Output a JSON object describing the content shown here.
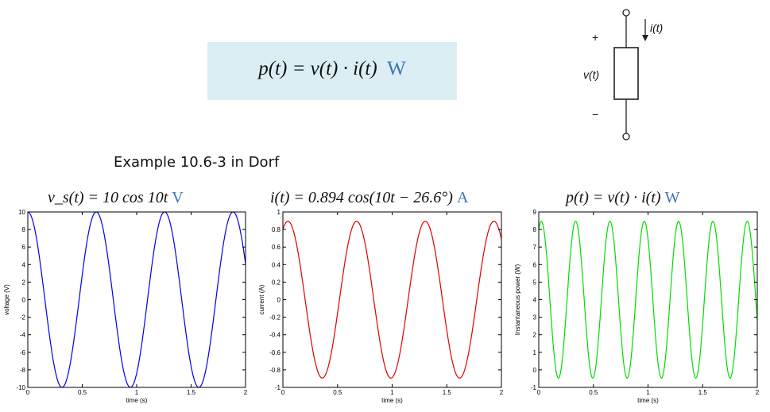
{
  "header": {
    "formula": "p(t) = v(t) · i(t)",
    "unit": "W"
  },
  "circuit": {
    "current_label": "i(t)",
    "voltage_label": "v(t)",
    "plus": "+",
    "minus": "−"
  },
  "example_label": "Example 10.6-3 in Dorf",
  "chart_data": [
    {
      "type": "line",
      "title": "v_s(t) = 10 cos 10t",
      "title_unit": "V",
      "color": "#0000ee",
      "xlabel": "time (s)",
      "ylabel": "voltage (V)",
      "xlim": [
        0,
        2
      ],
      "ylim": [
        -10,
        10
      ],
      "xticks": [
        "0",
        "0.5",
        "1",
        "1.5",
        "2"
      ],
      "yticks": [
        "-10",
        "-8",
        "-6",
        "-4",
        "-2",
        "0",
        "2",
        "4",
        "6",
        "8",
        "10"
      ],
      "function": {
        "amplitude": 10,
        "omega": 10,
        "phase_deg": 0,
        "offset": 0
      },
      "series": [
        {
          "x": [
            0,
            0.314,
            0.628,
            0.942,
            1.257,
            1.571,
            1.885,
            2.0
          ],
          "y": [
            10,
            -10,
            10,
            -10,
            10,
            -10,
            10,
            4.08
          ]
        }
      ]
    },
    {
      "type": "line",
      "title": "i(t) = 0.894 cos(10t − 26.6°)",
      "title_unit": "A",
      "color": "#e00000",
      "xlabel": "time (s)",
      "ylabel": "current (A)",
      "xlim": [
        0,
        2
      ],
      "ylim": [
        -1,
        1
      ],
      "xticks": [
        "0",
        "0.5",
        "1",
        "1.5",
        "2"
      ],
      "yticks": [
        "-1",
        "-0.8",
        "-0.6",
        "-0.4",
        "-0.2",
        "0",
        "0.2",
        "0.4",
        "0.6",
        "0.8",
        "1"
      ],
      "function": {
        "amplitude": 0.894,
        "omega": 10,
        "phase_deg": -26.6,
        "offset": 0
      },
      "series": [
        {
          "x": [
            0,
            0.046,
            0.361,
            0.675,
            0.989,
            1.303,
            1.617,
            1.932,
            2.0
          ],
          "y": [
            0.8,
            0.894,
            -0.894,
            0.894,
            -0.894,
            0.894,
            -0.894,
            0.894,
            0.73
          ]
        }
      ]
    },
    {
      "type": "line",
      "title": "p(t) = v(t) · i(t)",
      "title_unit": "W",
      "color": "#00dd00",
      "xlabel": "time (s)",
      "ylabel": "Instantaneous power (W)",
      "xlim": [
        0,
        2
      ],
      "ylim": [
        -1,
        9
      ],
      "xticks": [
        "0",
        "0.5",
        "1",
        "1.5",
        "2"
      ],
      "yticks": [
        "-1",
        "0",
        "1",
        "2",
        "3",
        "4",
        "5",
        "6",
        "7",
        "8",
        "9"
      ],
      "function": {
        "product": true,
        "offset": 4.0,
        "amplitude": 4.47,
        "omega": 20,
        "phase_deg": -26.6
      },
      "series": [
        {
          "x": [
            0,
            0.023,
            0.18,
            0.338,
            0.495,
            0.652,
            0.809,
            0.966,
            1.123,
            1.28,
            1.437,
            1.594,
            1.751,
            1.908,
            2.0
          ],
          "y": [
            8.0,
            8.47,
            -0.47,
            8.47,
            -0.47,
            8.47,
            -0.47,
            8.47,
            -0.47,
            8.47,
            -0.47,
            8.47,
            -0.47,
            8.47,
            2.3
          ]
        }
      ]
    }
  ]
}
